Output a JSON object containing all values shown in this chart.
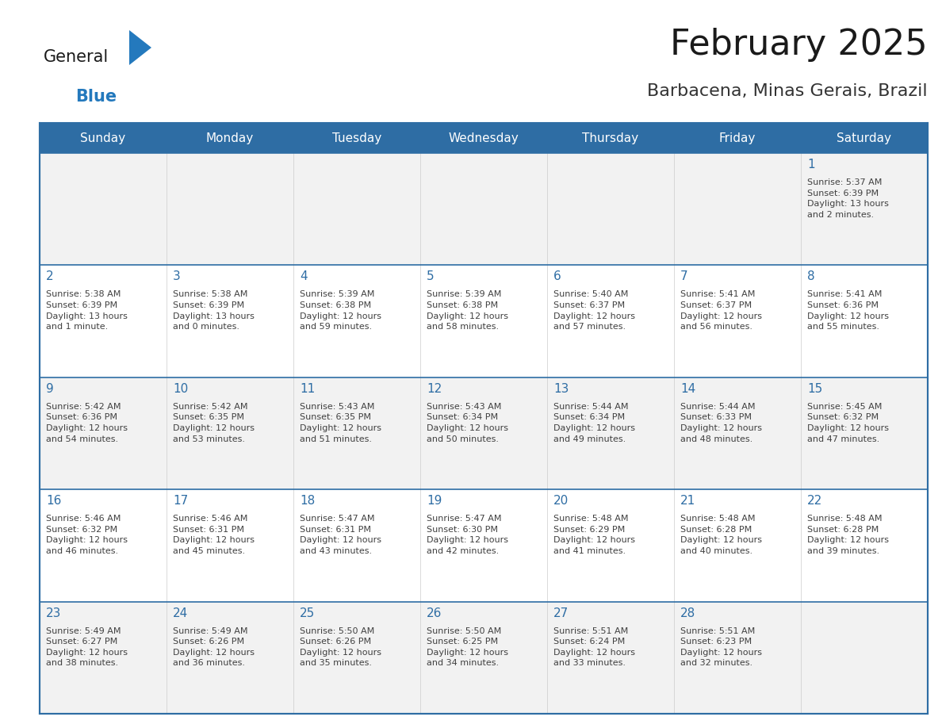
{
  "title": "February 2025",
  "subtitle": "Barbacena, Minas Gerais, Brazil",
  "header_bg": "#2E6DA4",
  "header_text": "#FFFFFF",
  "cell_bg_odd": "#F2F2F2",
  "cell_bg_even": "#FFFFFF",
  "border_color": "#2E6DA4",
  "day_headers": [
    "Sunday",
    "Monday",
    "Tuesday",
    "Wednesday",
    "Thursday",
    "Friday",
    "Saturday"
  ],
  "title_color": "#1a1a1a",
  "subtitle_color": "#333333",
  "day_number_color": "#2E6DA4",
  "cell_text_color": "#404040",
  "calendar_data": [
    [
      null,
      null,
      null,
      null,
      null,
      null,
      {
        "day": 1,
        "sunrise": "5:37 AM",
        "sunset": "6:39 PM",
        "daylight": "13 hours\nand 2 minutes."
      }
    ],
    [
      {
        "day": 2,
        "sunrise": "5:38 AM",
        "sunset": "6:39 PM",
        "daylight": "13 hours\nand 1 minute."
      },
      {
        "day": 3,
        "sunrise": "5:38 AM",
        "sunset": "6:39 PM",
        "daylight": "13 hours\nand 0 minutes."
      },
      {
        "day": 4,
        "sunrise": "5:39 AM",
        "sunset": "6:38 PM",
        "daylight": "12 hours\nand 59 minutes."
      },
      {
        "day": 5,
        "sunrise": "5:39 AM",
        "sunset": "6:38 PM",
        "daylight": "12 hours\nand 58 minutes."
      },
      {
        "day": 6,
        "sunrise": "5:40 AM",
        "sunset": "6:37 PM",
        "daylight": "12 hours\nand 57 minutes."
      },
      {
        "day": 7,
        "sunrise": "5:41 AM",
        "sunset": "6:37 PM",
        "daylight": "12 hours\nand 56 minutes."
      },
      {
        "day": 8,
        "sunrise": "5:41 AM",
        "sunset": "6:36 PM",
        "daylight": "12 hours\nand 55 minutes."
      }
    ],
    [
      {
        "day": 9,
        "sunrise": "5:42 AM",
        "sunset": "6:36 PM",
        "daylight": "12 hours\nand 54 minutes."
      },
      {
        "day": 10,
        "sunrise": "5:42 AM",
        "sunset": "6:35 PM",
        "daylight": "12 hours\nand 53 minutes."
      },
      {
        "day": 11,
        "sunrise": "5:43 AM",
        "sunset": "6:35 PM",
        "daylight": "12 hours\nand 51 minutes."
      },
      {
        "day": 12,
        "sunrise": "5:43 AM",
        "sunset": "6:34 PM",
        "daylight": "12 hours\nand 50 minutes."
      },
      {
        "day": 13,
        "sunrise": "5:44 AM",
        "sunset": "6:34 PM",
        "daylight": "12 hours\nand 49 minutes."
      },
      {
        "day": 14,
        "sunrise": "5:44 AM",
        "sunset": "6:33 PM",
        "daylight": "12 hours\nand 48 minutes."
      },
      {
        "day": 15,
        "sunrise": "5:45 AM",
        "sunset": "6:32 PM",
        "daylight": "12 hours\nand 47 minutes."
      }
    ],
    [
      {
        "day": 16,
        "sunrise": "5:46 AM",
        "sunset": "6:32 PM",
        "daylight": "12 hours\nand 46 minutes."
      },
      {
        "day": 17,
        "sunrise": "5:46 AM",
        "sunset": "6:31 PM",
        "daylight": "12 hours\nand 45 minutes."
      },
      {
        "day": 18,
        "sunrise": "5:47 AM",
        "sunset": "6:31 PM",
        "daylight": "12 hours\nand 43 minutes."
      },
      {
        "day": 19,
        "sunrise": "5:47 AM",
        "sunset": "6:30 PM",
        "daylight": "12 hours\nand 42 minutes."
      },
      {
        "day": 20,
        "sunrise": "5:48 AM",
        "sunset": "6:29 PM",
        "daylight": "12 hours\nand 41 minutes."
      },
      {
        "day": 21,
        "sunrise": "5:48 AM",
        "sunset": "6:28 PM",
        "daylight": "12 hours\nand 40 minutes."
      },
      {
        "day": 22,
        "sunrise": "5:48 AM",
        "sunset": "6:28 PM",
        "daylight": "12 hours\nand 39 minutes."
      }
    ],
    [
      {
        "day": 23,
        "sunrise": "5:49 AM",
        "sunset": "6:27 PM",
        "daylight": "12 hours\nand 38 minutes."
      },
      {
        "day": 24,
        "sunrise": "5:49 AM",
        "sunset": "6:26 PM",
        "daylight": "12 hours\nand 36 minutes."
      },
      {
        "day": 25,
        "sunrise": "5:50 AM",
        "sunset": "6:26 PM",
        "daylight": "12 hours\nand 35 minutes."
      },
      {
        "day": 26,
        "sunrise": "5:50 AM",
        "sunset": "6:25 PM",
        "daylight": "12 hours\nand 34 minutes."
      },
      {
        "day": 27,
        "sunrise": "5:51 AM",
        "sunset": "6:24 PM",
        "daylight": "12 hours\nand 33 minutes."
      },
      {
        "day": 28,
        "sunrise": "5:51 AM",
        "sunset": "6:23 PM",
        "daylight": "12 hours\nand 32 minutes."
      },
      null
    ]
  ],
  "logo_text_general": "General",
  "logo_text_blue": "Blue",
  "logo_color_general": "#1a1a1a",
  "logo_color_blue": "#2479BD",
  "logo_triangle_color": "#2479BD",
  "fig_width": 11.88,
  "fig_height": 9.18,
  "dpi": 100
}
